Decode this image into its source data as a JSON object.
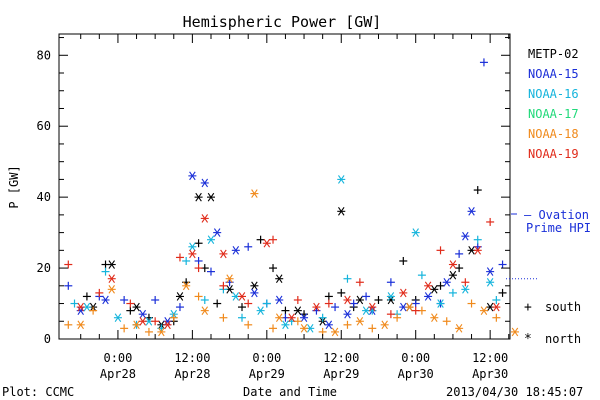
{
  "chart_data": {
    "type": "scatter",
    "title": "Hemispheric Power [GW]",
    "ylabel": "P [GW]",
    "xlabel": "Date and Time",
    "ylim": [
      0,
      86
    ],
    "yticks": [
      0,
      20,
      40,
      60,
      80
    ],
    "x_unit": "hours since 2013-04-28 00:00 UT",
    "xlim": [
      -9.5,
      63.2
    ],
    "xticks": [
      {
        "hour": 0,
        "time": "0:00",
        "date": "Apr28"
      },
      {
        "hour": 12,
        "time": "12:00",
        "date": "Apr28"
      },
      {
        "hour": 24,
        "time": "0:00",
        "date": "Apr29"
      },
      {
        "hour": 36,
        "time": "12:00",
        "date": "Apr29"
      },
      {
        "hour": 48,
        "time": "0:00",
        "date": "Apr30"
      },
      {
        "hour": 60,
        "time": "12:00",
        "date": "Apr30"
      }
    ],
    "markers": {
      "south": "+",
      "north": "*"
    },
    "series": [
      {
        "name": "METP-02",
        "color": "#000000",
        "south": [
          [
            -5,
            12
          ],
          [
            -2,
            21
          ],
          [
            2,
            8
          ],
          [
            5,
            6
          ],
          [
            9,
            5
          ],
          [
            11,
            16
          ],
          [
            13,
            27
          ],
          [
            14,
            20
          ],
          [
            16,
            10
          ],
          [
            20,
            9
          ],
          [
            23,
            28
          ],
          [
            25,
            20
          ],
          [
            27,
            8
          ],
          [
            30,
            7
          ],
          [
            34,
            12
          ],
          [
            36,
            13
          ],
          [
            38,
            9
          ],
          [
            42,
            11
          ],
          [
            46,
            22
          ],
          [
            48,
            11
          ],
          [
            52,
            15
          ],
          [
            55,
            20
          ],
          [
            58,
            42
          ],
          [
            62,
            13
          ]
        ],
        "north": [
          [
            -4,
            9
          ],
          [
            -1,
            21
          ],
          [
            3,
            9
          ],
          [
            7,
            4
          ],
          [
            10,
            12
          ],
          [
            13,
            40
          ],
          [
            15,
            40
          ],
          [
            18,
            14
          ],
          [
            22,
            15
          ],
          [
            26,
            17
          ],
          [
            29,
            8
          ],
          [
            33,
            5
          ],
          [
            36,
            36
          ],
          [
            39,
            11
          ],
          [
            44,
            11
          ],
          [
            47,
            9
          ],
          [
            51,
            14
          ],
          [
            54,
            18
          ],
          [
            57,
            25
          ],
          [
            60,
            9
          ]
        ]
      },
      {
        "name": "NOAA-15",
        "color": "#1a2fd8",
        "south": [
          [
            -8,
            15
          ],
          [
            -3,
            12
          ],
          [
            1,
            11
          ],
          [
            6,
            11
          ],
          [
            10,
            9
          ],
          [
            13,
            22
          ],
          [
            15,
            19
          ],
          [
            18,
            16
          ],
          [
            21,
            26
          ],
          [
            24,
            10
          ],
          [
            27,
            6
          ],
          [
            32,
            8
          ],
          [
            35,
            9
          ],
          [
            38,
            10
          ],
          [
            40,
            12
          ],
          [
            44,
            16
          ],
          [
            48,
            10
          ],
          [
            52,
            10
          ],
          [
            55,
            24
          ],
          [
            58,
            26
          ],
          [
            59,
            78
          ],
          [
            62,
            21
          ]
        ],
        "north": [
          [
            -6,
            8
          ],
          [
            -2,
            11
          ],
          [
            4,
            7
          ],
          [
            8,
            5
          ],
          [
            12,
            46
          ],
          [
            14,
            44
          ],
          [
            16,
            30
          ],
          [
            19,
            25
          ],
          [
            22,
            13
          ],
          [
            26,
            11
          ],
          [
            30,
            6
          ],
          [
            34,
            4
          ],
          [
            37,
            7
          ],
          [
            41,
            8
          ],
          [
            46,
            9
          ],
          [
            50,
            12
          ],
          [
            53,
            16
          ],
          [
            56,
            29
          ],
          [
            57,
            36
          ],
          [
            60,
            19
          ]
        ]
      },
      {
        "name": "NOAA-16",
        "color": "#14b4dc",
        "south": [
          [
            -7,
            10
          ],
          [
            -2,
            19
          ],
          [
            3,
            4
          ],
          [
            7,
            3
          ],
          [
            11,
            22
          ],
          [
            14,
            11
          ],
          [
            17,
            14
          ],
          [
            20,
            6
          ],
          [
            24,
            10
          ],
          [
            28,
            5
          ],
          [
            33,
            6
          ],
          [
            37,
            17
          ],
          [
            41,
            8
          ],
          [
            45,
            7
          ],
          [
            49,
            18
          ],
          [
            54,
            13
          ],
          [
            58,
            28
          ],
          [
            61,
            11
          ]
        ],
        "north": [
          [
            -5,
            9
          ],
          [
            0,
            6
          ],
          [
            5,
            5
          ],
          [
            9,
            7
          ],
          [
            12,
            26
          ],
          [
            15,
            28
          ],
          [
            19,
            12
          ],
          [
            23,
            8
          ],
          [
            27,
            4
          ],
          [
            31,
            3
          ],
          [
            36,
            45
          ],
          [
            40,
            8
          ],
          [
            44,
            12
          ],
          [
            48,
            30
          ],
          [
            52,
            10
          ],
          [
            56,
            14
          ],
          [
            60,
            16
          ]
        ]
      },
      {
        "name": "NOAA-17",
        "color": "#20d97a",
        "south": [],
        "north": []
      },
      {
        "name": "NOAA-18",
        "color": "#f08a1c",
        "south": [
          [
            -8,
            4
          ],
          [
            -4,
            8
          ],
          [
            1,
            3
          ],
          [
            5,
            2
          ],
          [
            9,
            6
          ],
          [
            13,
            12
          ],
          [
            17,
            6
          ],
          [
            21,
            4
          ],
          [
            25,
            3
          ],
          [
            29,
            5
          ],
          [
            33,
            2
          ],
          [
            37,
            4
          ],
          [
            41,
            3
          ],
          [
            45,
            6
          ],
          [
            49,
            8
          ],
          [
            53,
            5
          ],
          [
            57,
            10
          ],
          [
            61,
            6
          ]
        ],
        "north": [
          [
            -6,
            4
          ],
          [
            -1,
            14
          ],
          [
            3,
            4
          ],
          [
            7,
            2
          ],
          [
            11,
            15
          ],
          [
            14,
            8
          ],
          [
            18,
            17
          ],
          [
            22,
            41
          ],
          [
            26,
            6
          ],
          [
            30,
            3
          ],
          [
            35,
            2
          ],
          [
            39,
            5
          ],
          [
            43,
            4
          ],
          [
            47,
            9
          ],
          [
            51,
            6
          ],
          [
            55,
            3
          ],
          [
            59,
            8
          ],
          [
            64,
            2
          ]
        ]
      },
      {
        "name": "NOAA-19",
        "color": "#e02b1a",
        "south": [
          [
            -8,
            21
          ],
          [
            -3,
            13
          ],
          [
            2,
            10
          ],
          [
            6,
            5
          ],
          [
            10,
            23
          ],
          [
            13,
            20
          ],
          [
            17,
            15
          ],
          [
            21,
            10
          ],
          [
            25,
            28
          ],
          [
            29,
            11
          ],
          [
            34,
            10
          ],
          [
            39,
            16
          ],
          [
            44,
            7
          ],
          [
            48,
            8
          ],
          [
            52,
            25
          ],
          [
            56,
            16
          ],
          [
            60,
            33
          ]
        ],
        "north": [
          [
            -6,
            9
          ],
          [
            -1,
            17
          ],
          [
            4,
            5
          ],
          [
            8,
            4
          ],
          [
            12,
            24
          ],
          [
            14,
            34
          ],
          [
            17,
            24
          ],
          [
            20,
            12
          ],
          [
            24,
            27
          ],
          [
            28,
            6
          ],
          [
            32,
            9
          ],
          [
            37,
            11
          ],
          [
            41,
            9
          ],
          [
            46,
            13
          ],
          [
            50,
            15
          ],
          [
            54,
            21
          ],
          [
            58,
            25
          ],
          [
            61,
            9
          ]
        ]
      }
    ],
    "ovation": {
      "label_line1": "– Ovation",
      "label_line2": "Prime HPI",
      "color": "#1a2fd8",
      "value": 17
    }
  },
  "legend_markers": {
    "south_symbol": "+",
    "south_label": "south",
    "north_symbol": "*",
    "north_label": "north"
  },
  "footer": {
    "left": "Plot: CCMC",
    "right": "2013/04/30 18:45:07"
  }
}
